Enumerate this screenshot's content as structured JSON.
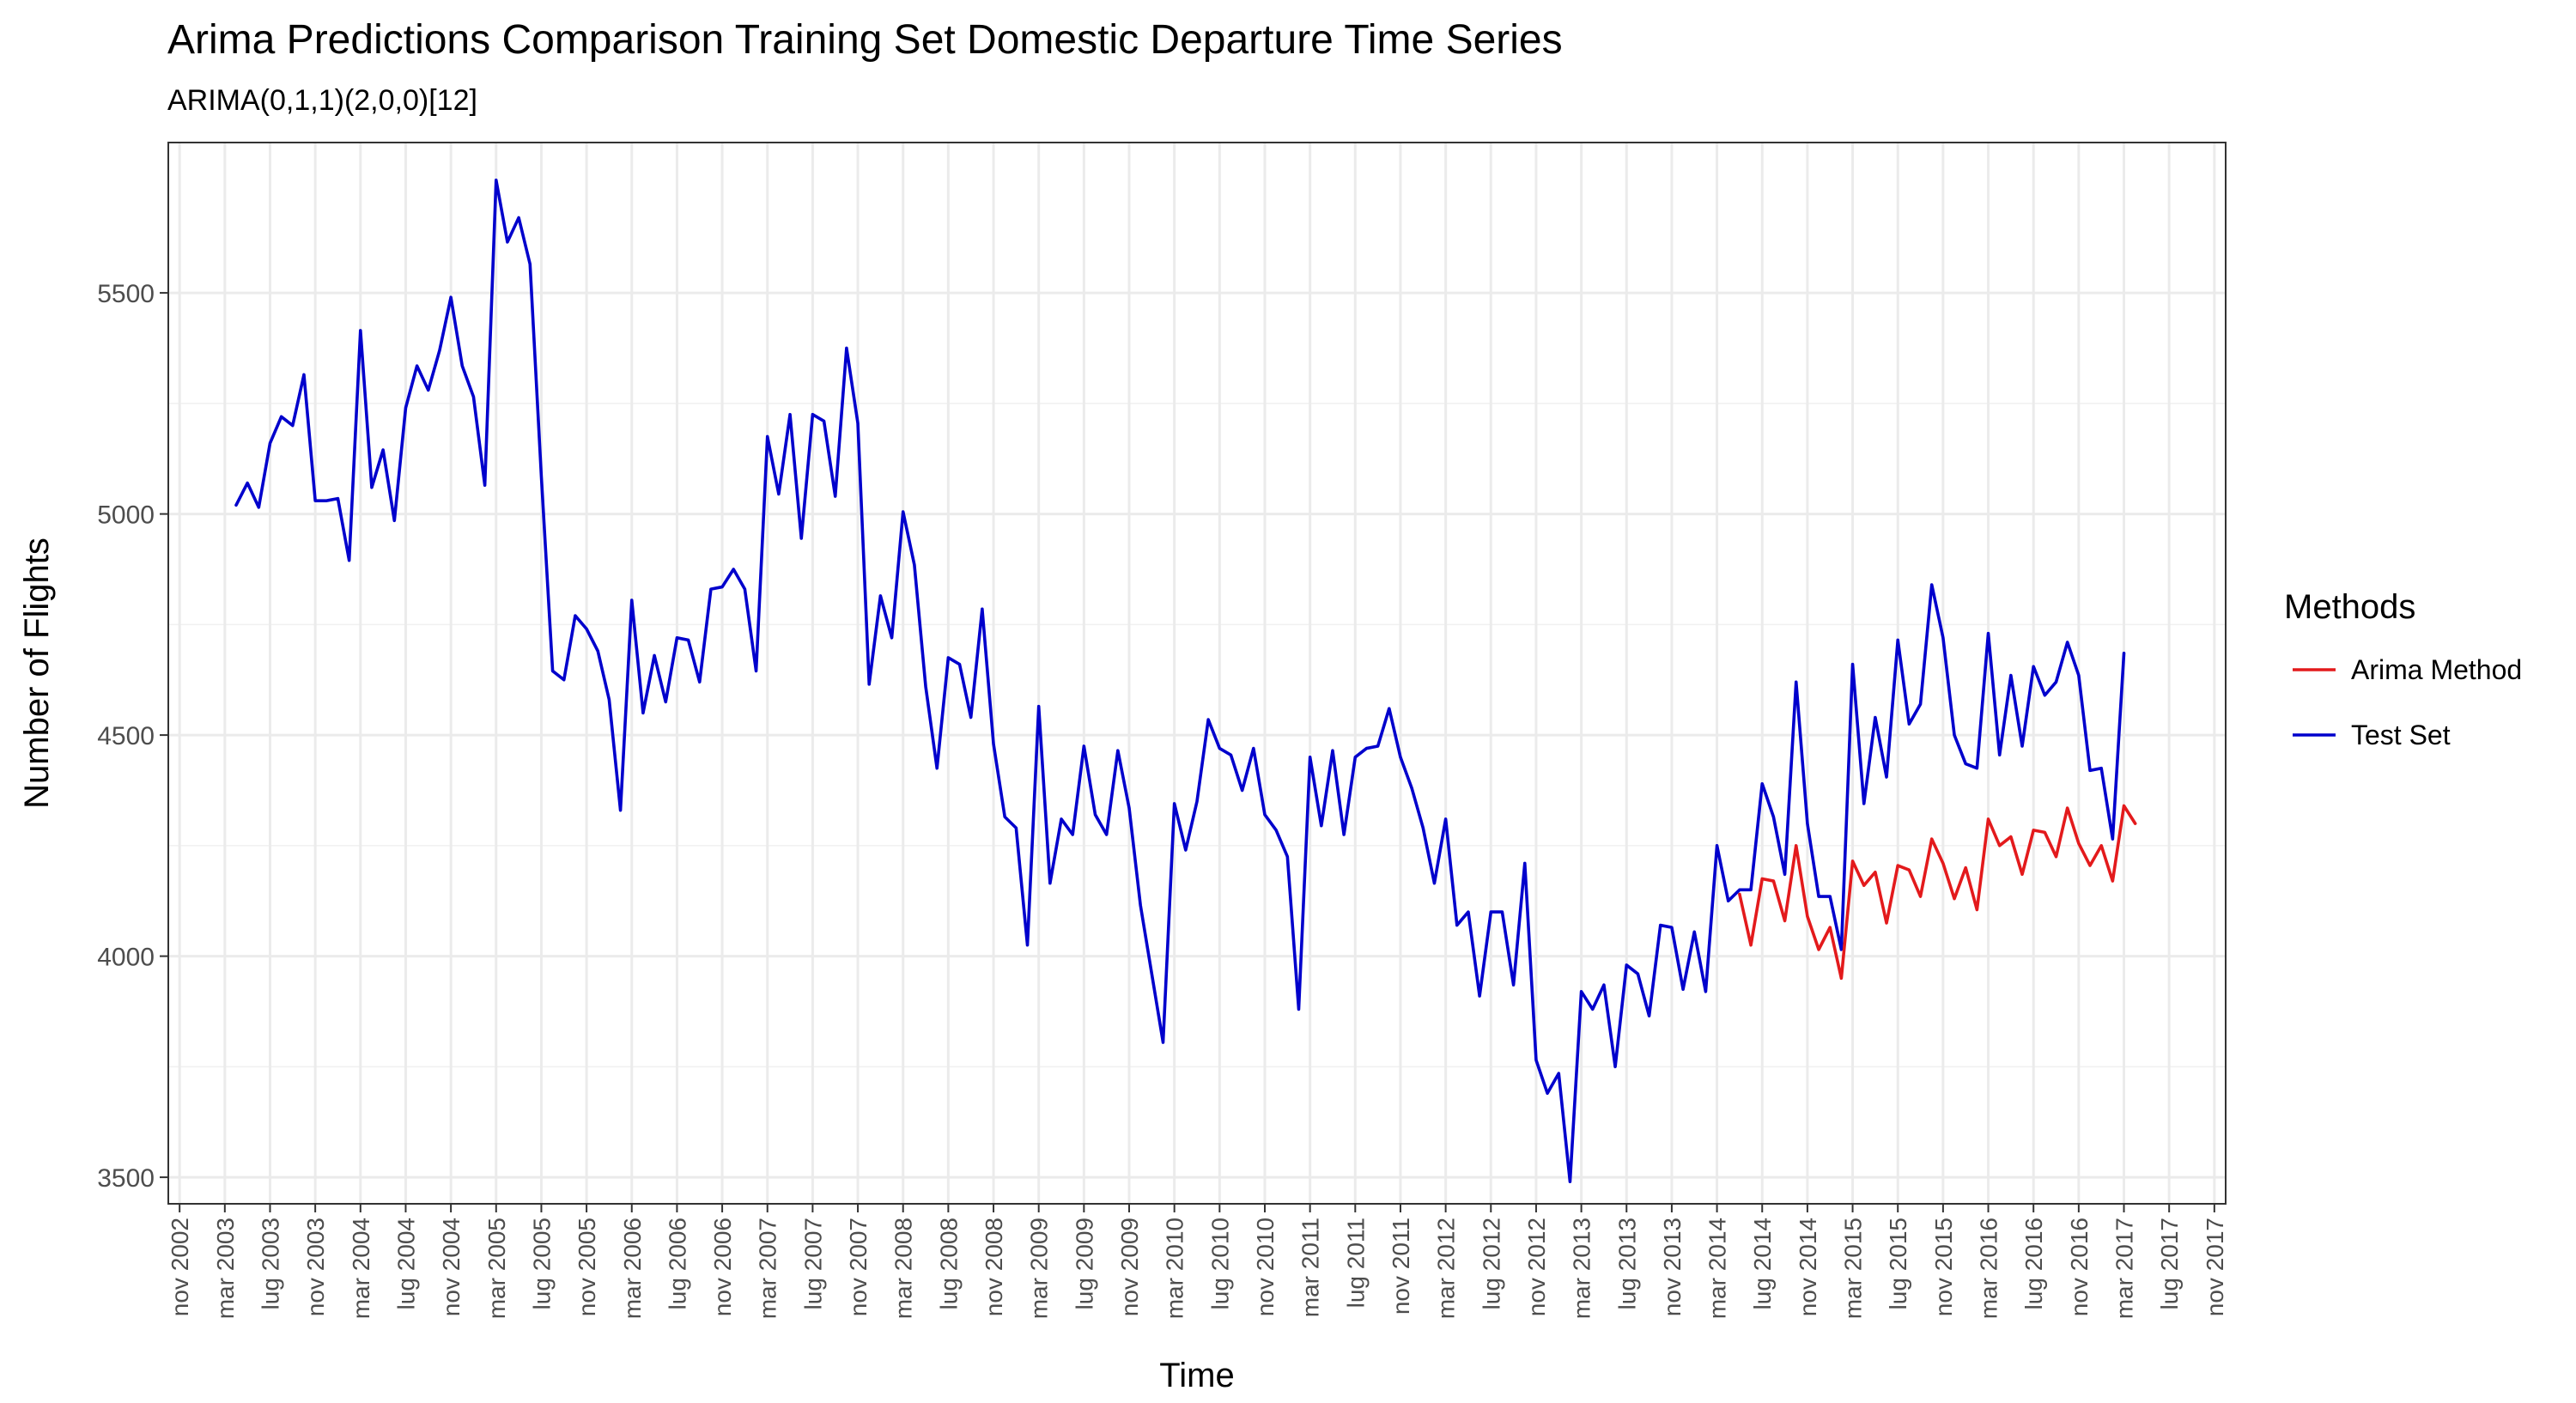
{
  "chart_data": {
    "type": "line",
    "title": "Arima Predictions Comparison Training Set Domestic Departure Time Series",
    "subtitle": "ARIMA(0,1,1)(2,0,0)[12]",
    "xlabel": "Time",
    "ylabel": "Number of Flights",
    "yticks": [
      3500,
      4000,
      4500,
      5000,
      5500
    ],
    "ylim": [
      3440,
      5840
    ],
    "xlim": [
      "2002-10",
      "2017-12"
    ],
    "xtick_labels": [
      "nov 2002",
      "mar 2003",
      "lug 2003",
      "nov 2003",
      "mar 2004",
      "lug 2004",
      "nov 2004",
      "mar 2005",
      "lug 2005",
      "nov 2005",
      "mar 2006",
      "lug 2006",
      "nov 2006",
      "mar 2007",
      "lug 2007",
      "nov 2007",
      "mar 2008",
      "lug 2008",
      "nov 2008",
      "mar 2009",
      "lug 2009",
      "nov 2009",
      "mar 2010",
      "lug 2010",
      "nov 2010",
      "mar 2011",
      "lug 2011",
      "nov 2011",
      "mar 2012",
      "lug 2012",
      "nov 2012",
      "mar 2013",
      "lug 2013",
      "nov 2013",
      "mar 2014",
      "lug 2014",
      "nov 2014",
      "mar 2015",
      "lug 2015",
      "nov 2015",
      "mar 2016",
      "lug 2016",
      "nov 2016",
      "mar 2017",
      "lug 2017",
      "nov 2017"
    ],
    "xtick_dates": [
      "2002-11",
      "2003-03",
      "2003-07",
      "2003-11",
      "2004-03",
      "2004-07",
      "2004-11",
      "2005-03",
      "2005-07",
      "2005-11",
      "2006-03",
      "2006-07",
      "2006-11",
      "2007-03",
      "2007-07",
      "2007-11",
      "2008-03",
      "2008-07",
      "2008-11",
      "2009-03",
      "2009-07",
      "2009-11",
      "2010-03",
      "2010-07",
      "2010-11",
      "2011-03",
      "2011-07",
      "2011-11",
      "2012-03",
      "2012-07",
      "2012-11",
      "2013-03",
      "2013-07",
      "2013-11",
      "2014-03",
      "2014-07",
      "2014-11",
      "2015-03",
      "2015-07",
      "2015-11",
      "2016-03",
      "2016-07",
      "2016-11",
      "2017-03",
      "2017-07",
      "2017-11"
    ],
    "grid": true,
    "legend": {
      "title": "Methods",
      "placement": "right"
    },
    "series": [
      {
        "name": "Test Set",
        "color": "#0000cc",
        "start": "2003-04",
        "values": [
          5020,
          5070,
          5015,
          5160,
          5220,
          5200,
          5315,
          5030,
          5030,
          5035,
          4895,
          5415,
          5060,
          5145,
          4985,
          5240,
          5335,
          5280,
          5370,
          5490,
          5335,
          5265,
          5065,
          5755,
          5615,
          5670,
          5565,
          5085,
          4645,
          4625,
          4770,
          4740,
          4690,
          4580,
          4330,
          4805,
          4550,
          4680,
          4575,
          4720,
          4715,
          4620,
          4830,
          4835,
          4875,
          4830,
          4645,
          5175,
          5045,
          5225,
          4945,
          5225,
          5210,
          5040,
          5375,
          5205,
          4615,
          4815,
          4720,
          5005,
          4885,
          4610,
          4425,
          4675,
          4660,
          4540,
          4785,
          4480,
          4315,
          4290,
          4025,
          4565,
          4165,
          4310,
          4275,
          4475,
          4320,
          4275,
          4465,
          4335,
          4115,
          3960,
          3805,
          4345,
          4240,
          4350,
          4535,
          4470,
          4455,
          4375,
          4470,
          4320,
          4285,
          4225,
          3880,
          4450,
          4295,
          4465,
          4275,
          4450,
          4470,
          4475,
          4560,
          4450,
          4380,
          4290,
          4165,
          4310,
          4070,
          4100,
          3910,
          4100,
          4100,
          3935,
          4210,
          3765,
          3690,
          3735,
          3490,
          3920,
          3880,
          3935,
          3750,
          3980,
          3960,
          3865,
          4070,
          4065,
          3925,
          4055,
          3920,
          4250,
          4125,
          4150,
          4150,
          4390,
          4315,
          4185,
          4620,
          4300,
          4135,
          4135,
          4015,
          4660,
          4345,
          4540,
          4405,
          4715,
          4525,
          4570,
          4840,
          4720,
          4500,
          4435,
          4425,
          4730,
          4455,
          4635,
          4475,
          4655,
          4590,
          4620,
          4710,
          4635,
          4420,
          4425,
          4265,
          4685
        ]
      },
      {
        "name": "Arima Method",
        "color": "#e31a1c",
        "start": "2014-05",
        "values": [
          4140,
          4025,
          4175,
          4170,
          4080,
          4250,
          4090,
          4015,
          4065,
          3950,
          4215,
          4160,
          4190,
          4075,
          4205,
          4195,
          4135,
          4265,
          4210,
          4130,
          4200,
          4105,
          4310,
          4250,
          4270,
          4185,
          4285,
          4280,
          4225,
          4335,
          4255,
          4205,
          4250,
          4170,
          4340,
          4300
        ]
      }
    ]
  }
}
